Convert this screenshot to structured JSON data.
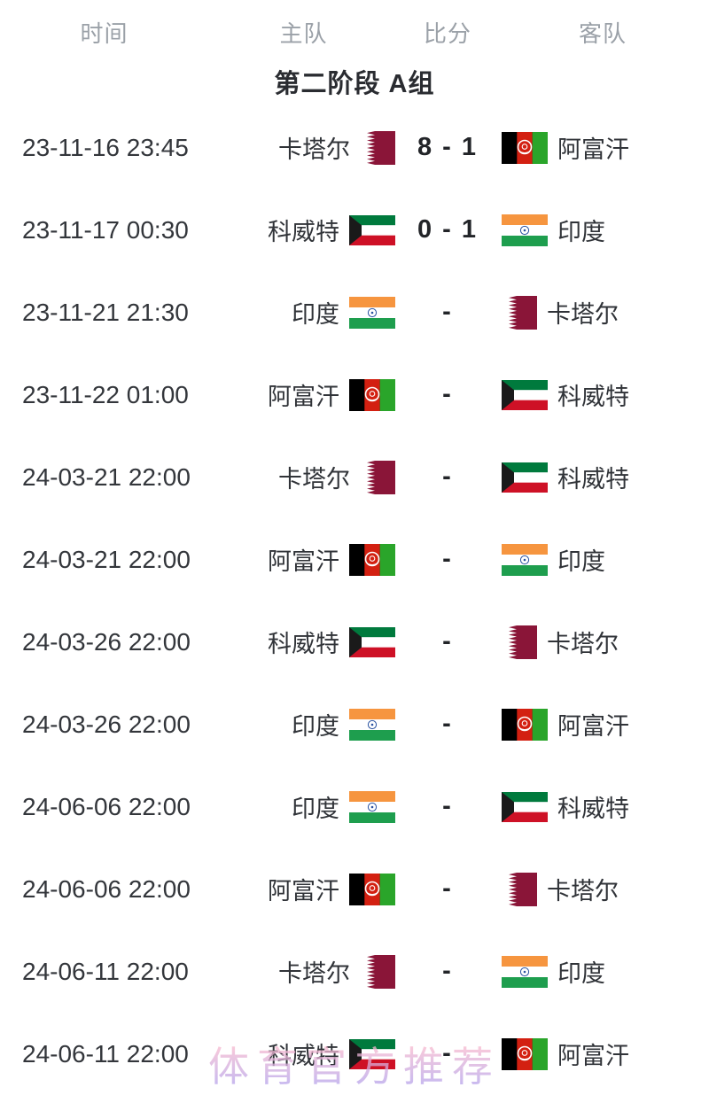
{
  "header": {
    "time": "时间",
    "home": "主队",
    "score": "比分",
    "away": "客队"
  },
  "stage_title": "第二阶段 A组",
  "watermark": "体育官方推荐",
  "colors": {
    "header_text": "#9ba1a8",
    "body_text": "#33363b",
    "score_text": "#222428",
    "watermark_pink": "#f7b9cf",
    "watermark_purple": "#b7a3ea",
    "qatar_maroon": "#8a1538",
    "afghan_black": "#000000",
    "afghan_red": "#d32011",
    "afghan_green": "#2aa52a",
    "kuwait_green": "#007a3d",
    "kuwait_red": "#ce1126",
    "kuwait_black": "#1a1a1a",
    "india_saffron": "#f6953f",
    "india_green": "#1e9e4e",
    "india_navy": "#2a52a0"
  },
  "matches": [
    {
      "time": "23-11-16 23:45",
      "home_team": "卡塔尔",
      "home_flag": "qatar",
      "score": "8 - 1",
      "away_team": "阿富汗",
      "away_flag": "afghanistan"
    },
    {
      "time": "23-11-17 00:30",
      "home_team": "科威特",
      "home_flag": "kuwait",
      "score": "0 - 1",
      "away_team": "印度",
      "away_flag": "india"
    },
    {
      "time": "23-11-21 21:30",
      "home_team": "印度",
      "home_flag": "india",
      "score": "-",
      "away_team": "卡塔尔",
      "away_flag": "qatar"
    },
    {
      "time": "23-11-22 01:00",
      "home_team": "阿富汗",
      "home_flag": "afghanistan",
      "score": "-",
      "away_team": "科威特",
      "away_flag": "kuwait"
    },
    {
      "time": "24-03-21 22:00",
      "home_team": "卡塔尔",
      "home_flag": "qatar",
      "score": "-",
      "away_team": "科威特",
      "away_flag": "kuwait"
    },
    {
      "time": "24-03-21 22:00",
      "home_team": "阿富汗",
      "home_flag": "afghanistan",
      "score": "-",
      "away_team": "印度",
      "away_flag": "india"
    },
    {
      "time": "24-03-26 22:00",
      "home_team": "科威特",
      "home_flag": "kuwait",
      "score": "-",
      "away_team": "卡塔尔",
      "away_flag": "qatar"
    },
    {
      "time": "24-03-26 22:00",
      "home_team": "印度",
      "home_flag": "india",
      "score": "-",
      "away_team": "阿富汗",
      "away_flag": "afghanistan"
    },
    {
      "time": "24-06-06 22:00",
      "home_team": "印度",
      "home_flag": "india",
      "score": "-",
      "away_team": "科威特",
      "away_flag": "kuwait"
    },
    {
      "time": "24-06-06 22:00",
      "home_team": "阿富汗",
      "home_flag": "afghanistan",
      "score": "-",
      "away_team": "卡塔尔",
      "away_flag": "qatar"
    },
    {
      "time": "24-06-11 22:00",
      "home_team": "卡塔尔",
      "home_flag": "qatar",
      "score": "-",
      "away_team": "印度",
      "away_flag": "india"
    },
    {
      "time": "24-06-11 22:00",
      "home_team": "科威特",
      "home_flag": "kuwait",
      "score": "-",
      "away_team": "阿富汗",
      "away_flag": "afghanistan"
    }
  ]
}
